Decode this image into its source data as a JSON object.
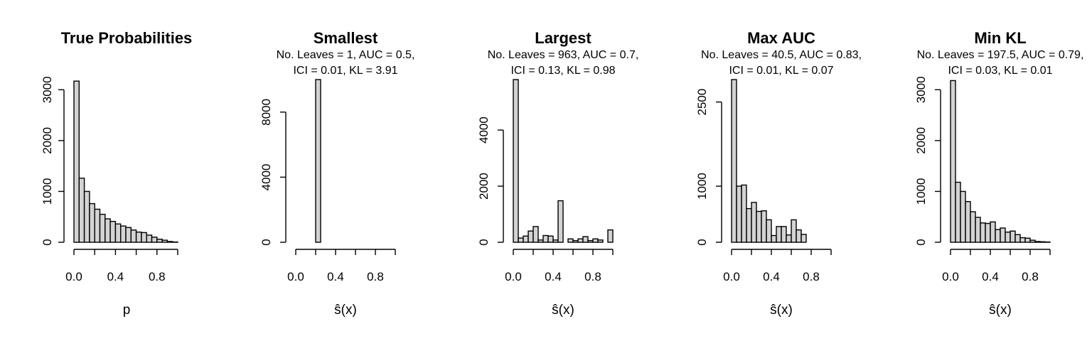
{
  "chart_data": [
    {
      "type": "bar",
      "title": "True Probabilities",
      "subtitle_lines": [],
      "xlabel": "p",
      "x_ticks": [
        "0.0",
        "0.4",
        "0.8"
      ],
      "y_ticks": [
        "0",
        "1000",
        "2000",
        "3000"
      ],
      "xlim": [
        0,
        1
      ],
      "ylim": [
        0,
        3200
      ],
      "bin_width": 0.05,
      "bar_fill": "#d3d3d3",
      "values": [
        3170,
        1260,
        1000,
        760,
        650,
        550,
        460,
        410,
        360,
        320,
        290,
        240,
        200,
        190,
        140,
        100,
        60,
        40,
        15,
        5
      ]
    },
    {
      "type": "bar",
      "title": "Smallest",
      "subtitle_lines": [
        "No. Leaves = 1, AUC = 0.5,",
        "ICI = 0.01, KL = 3.91"
      ],
      "xlabel": "ŝ(x)",
      "x_ticks": [
        "0.0",
        "0.4",
        "0.8"
      ],
      "y_ticks": [
        "0",
        "4000",
        "8000"
      ],
      "xlim": [
        0,
        1
      ],
      "ylim": [
        0,
        10000
      ],
      "bin_width": 0.05,
      "bar_fill": "#d3d3d3",
      "values": [
        0,
        0,
        0,
        0,
        10000,
        0,
        0,
        0,
        0,
        0,
        0,
        0,
        0,
        0,
        0,
        0,
        0,
        0,
        0,
        0
      ]
    },
    {
      "type": "bar",
      "title": "Largest",
      "subtitle_lines": [
        "No. Leaves = 963, AUC = 0.7,",
        "ICI = 0.13, KL = 0.98"
      ],
      "xlabel": "ŝ(x)",
      "x_ticks": [
        "0.0",
        "0.4",
        "0.8"
      ],
      "y_ticks": [
        "0",
        "2000",
        "4000"
      ],
      "xlim": [
        0,
        1
      ],
      "ylim": [
        0,
        5800
      ],
      "bin_width": 0.05,
      "bar_fill": "#d3d3d3",
      "values": [
        5800,
        150,
        220,
        400,
        560,
        80,
        240,
        220,
        80,
        1480,
        0,
        120,
        60,
        120,
        200,
        60,
        120,
        80,
        0,
        440
      ]
    },
    {
      "type": "bar",
      "title": "Max AUC",
      "subtitle_lines": [
        "No. Leaves = 40.5, AUC = 0.83,",
        "ICI = 0.01, KL = 0.07"
      ],
      "xlabel": "ŝ(x)",
      "x_ticks": [
        "0.0",
        "0.4",
        "0.8"
      ],
      "y_ticks": [
        "0",
        "1000",
        "2500"
      ],
      "xlim": [
        0,
        1
      ],
      "ylim": [
        0,
        2900
      ],
      "bin_width": 0.05,
      "bar_fill": "#d3d3d3",
      "values": [
        2900,
        1000,
        1020,
        600,
        710,
        550,
        560,
        400,
        120,
        280,
        280,
        130,
        400,
        220,
        140,
        0,
        0,
        0,
        0,
        0
      ]
    },
    {
      "type": "bar",
      "title": "Min KL",
      "subtitle_lines": [
        "No. Leaves = 197.5, AUC = 0.79,",
        "ICI = 0.03, KL = 0.01"
      ],
      "xlabel": "ŝ(x)",
      "x_ticks": [
        "0.0",
        "0.4",
        "0.8"
      ],
      "y_ticks": [
        "0",
        "1000",
        "2000",
        "3000"
      ],
      "xlim": [
        0,
        1
      ],
      "ylim": [
        0,
        3200
      ],
      "bin_width": 0.05,
      "bar_fill": "#d3d3d3",
      "values": [
        3180,
        1180,
        1000,
        800,
        600,
        490,
        380,
        370,
        400,
        250,
        280,
        200,
        220,
        150,
        90,
        80,
        40,
        15,
        10,
        5
      ]
    }
  ]
}
